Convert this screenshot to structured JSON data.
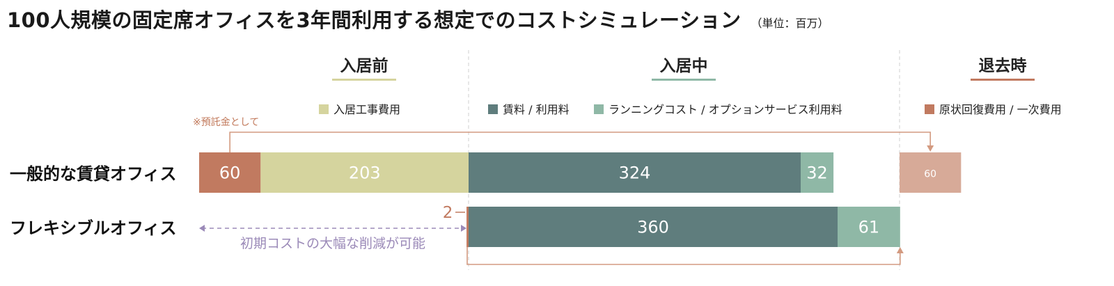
{
  "title": "100人規模の固定席オフィスを3年間利用する想定でのコストシミュレーション",
  "unit": "（単位：百万）",
  "colors": {
    "construction": "#d5d49e",
    "rent": "#5f7d7d",
    "running": "#8fb8a6",
    "restoration": "#c17a60",
    "deposit_return": "#d7aa98",
    "accent_line": "#d39a80",
    "cut_note": "#9b8ab8"
  },
  "phases": [
    {
      "label": "入居前",
      "underline": "#d5d49e"
    },
    {
      "label": "入居中",
      "underline": "#8fb8a6"
    },
    {
      "label": "退去時",
      "underline": "#c17a60"
    }
  ],
  "legend": [
    {
      "label": "入居工事費用",
      "color": "#d5d49e"
    },
    {
      "label": "賃料 / 利用料",
      "color": "#5f7d7d"
    },
    {
      "label": "ランニングコスト / オプションサービス利用料",
      "color": "#8fb8a6"
    },
    {
      "label": "原状回復費用 / 一次費用",
      "color": "#c17a60"
    }
  ],
  "annotations": {
    "deposit_note": "※預託金として",
    "cost_cut_note": "初期コストの大幅な削減が可能"
  },
  "chart_data": {
    "type": "bar",
    "orientation": "horizontal",
    "stacked": true,
    "title": "100人規模の固定席オフィスを3年間利用する想定でのコストシミュレーション",
    "unit": "（単位：百万）",
    "categories": [
      "一般的な賃貸オフィス",
      "フレキシブルオフィス"
    ],
    "rows": [
      {
        "name": "一般的な賃貸オフィス",
        "segments": [
          {
            "phase": "入居前",
            "series": "原状回復費用 / 一次費用",
            "value": 60,
            "label": "60",
            "note": "※預託金として"
          },
          {
            "phase": "入居前",
            "series": "入居工事費用",
            "value": 203,
            "label": "203"
          },
          {
            "phase": "入居中",
            "series": "賃料 / 利用料",
            "value": 324,
            "label": "324"
          },
          {
            "phase": "入居中",
            "series": "ランニングコスト / オプションサービス利用料",
            "value": 32,
            "label": "32"
          },
          {
            "phase": "退去時",
            "series": "原状回復費用 / 一次費用",
            "value": 60,
            "label": "60"
          }
        ]
      },
      {
        "name": "フレキシブルオフィス",
        "segments": [
          {
            "phase": "入居前",
            "series": "原状回復費用 / 一次費用",
            "value": 2,
            "label": "2"
          },
          {
            "phase": "入居中",
            "series": "賃料 / 利用料",
            "value": 360,
            "label": "360"
          },
          {
            "phase": "入居中",
            "series": "ランニングコスト / オプションサービス利用料",
            "value": 61,
            "label": "61"
          }
        ]
      }
    ],
    "legend_position": "top",
    "grid": false
  }
}
